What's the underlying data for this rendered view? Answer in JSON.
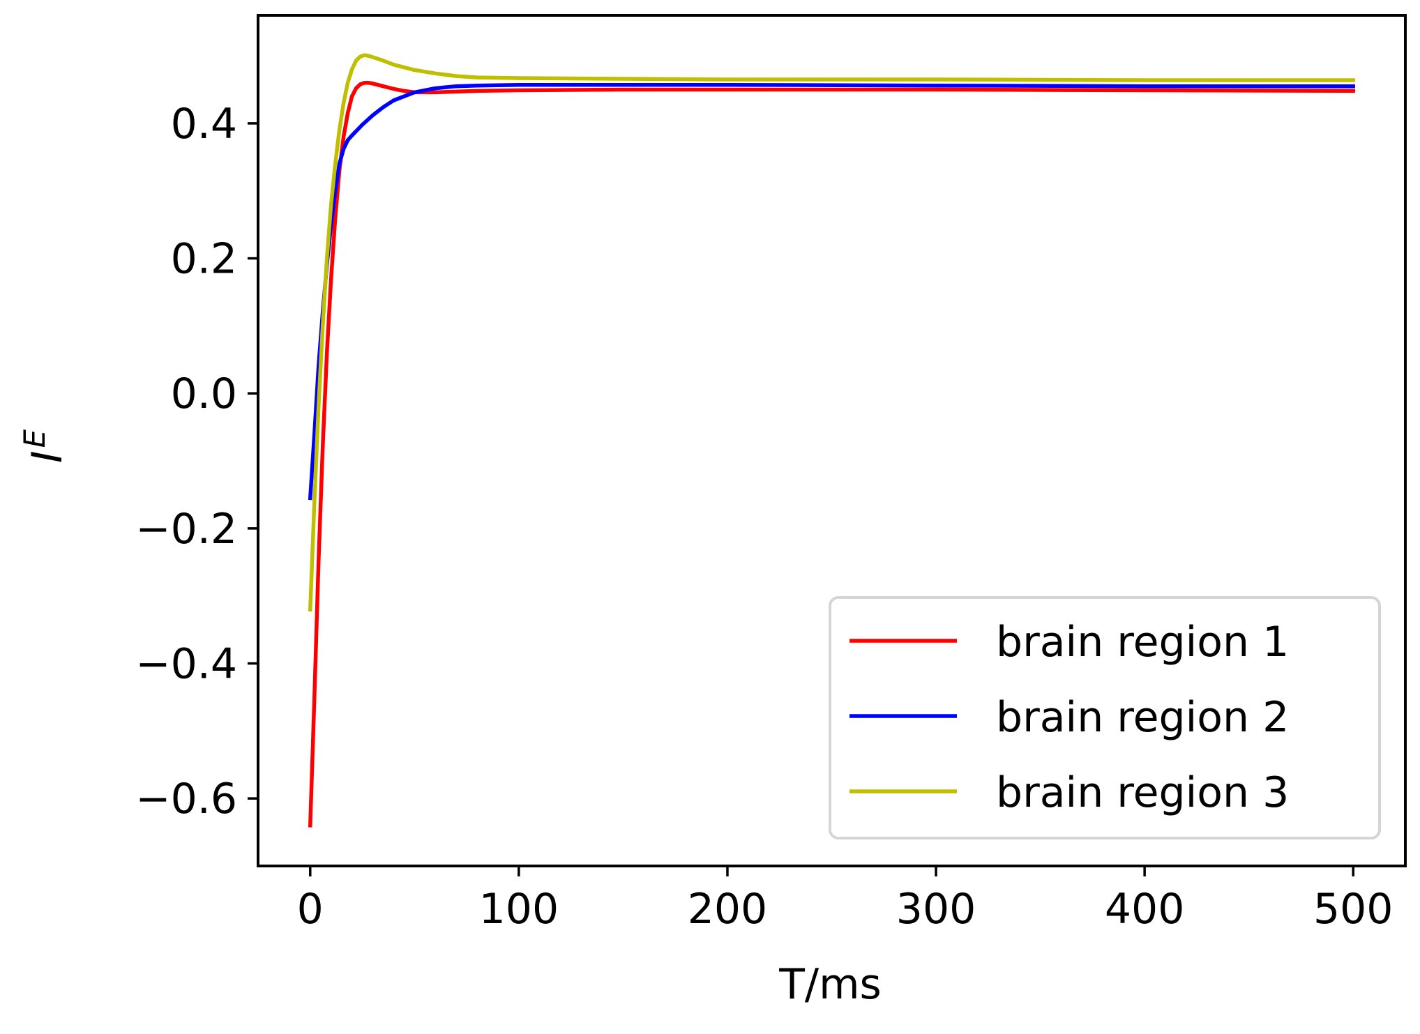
{
  "chart_data": {
    "type": "line",
    "title": "",
    "xlabel": "T/ms",
    "ylabel_base": "I",
    "ylabel_sup": "E",
    "xlim": [
      -25,
      525
    ],
    "ylim": [
      -0.7,
      0.56
    ],
    "xticks": [
      0,
      100,
      200,
      300,
      400,
      500
    ],
    "xtick_labels": [
      "0",
      "100",
      "200",
      "300",
      "400",
      "500"
    ],
    "yticks": [
      -0.6,
      -0.4,
      -0.2,
      0.0,
      0.2,
      0.4
    ],
    "ytick_labels": [
      "−0.6",
      "−0.4",
      "−0.2",
      "0.0",
      "0.2",
      "0.4"
    ],
    "grid": false,
    "legend_position": "lower-right",
    "series": [
      {
        "name": "brain region 1",
        "color": "#ff0000",
        "x": [
          0,
          2,
          4,
          6,
          8,
          10,
          12,
          14,
          16,
          18,
          20,
          22,
          24,
          26,
          28,
          30,
          35,
          40,
          45,
          50,
          55,
          60,
          70,
          80,
          100,
          150,
          200,
          300,
          400,
          500
        ],
        "y": [
          -0.64,
          -0.45,
          -0.25,
          -0.08,
          0.06,
          0.17,
          0.26,
          0.33,
          0.38,
          0.415,
          0.44,
          0.452,
          0.458,
          0.46,
          0.46,
          0.459,
          0.455,
          0.451,
          0.448,
          0.446,
          0.446,
          0.446,
          0.447,
          0.448,
          0.449,
          0.45,
          0.45,
          0.45,
          0.449,
          0.448
        ]
      },
      {
        "name": "brain region 2",
        "color": "#0000ff",
        "x": [
          0,
          2,
          4,
          6,
          8,
          10,
          12,
          14,
          16,
          18,
          20,
          25,
          30,
          35,
          40,
          50,
          60,
          70,
          80,
          100,
          150,
          200,
          300,
          400,
          500
        ],
        "y": [
          -0.155,
          -0.06,
          0.04,
          0.12,
          0.19,
          0.25,
          0.3,
          0.34,
          0.362,
          0.375,
          0.382,
          0.398,
          0.412,
          0.424,
          0.434,
          0.446,
          0.452,
          0.455,
          0.456,
          0.457,
          0.457,
          0.457,
          0.456,
          0.455,
          0.455
        ]
      },
      {
        "name": "brain region 3",
        "color": "#bfbf00",
        "x": [
          0,
          2,
          4,
          6,
          8,
          10,
          12,
          14,
          16,
          18,
          20,
          22,
          24,
          26,
          28,
          30,
          35,
          40,
          50,
          60,
          70,
          80,
          100,
          150,
          200,
          300,
          400,
          500
        ],
        "y": [
          -0.32,
          -0.16,
          -0.02,
          0.1,
          0.2,
          0.28,
          0.34,
          0.39,
          0.43,
          0.46,
          0.48,
          0.493,
          0.499,
          0.501,
          0.5,
          0.498,
          0.493,
          0.487,
          0.479,
          0.474,
          0.47,
          0.468,
          0.467,
          0.466,
          0.465,
          0.465,
          0.464,
          0.464
        ]
      }
    ]
  }
}
